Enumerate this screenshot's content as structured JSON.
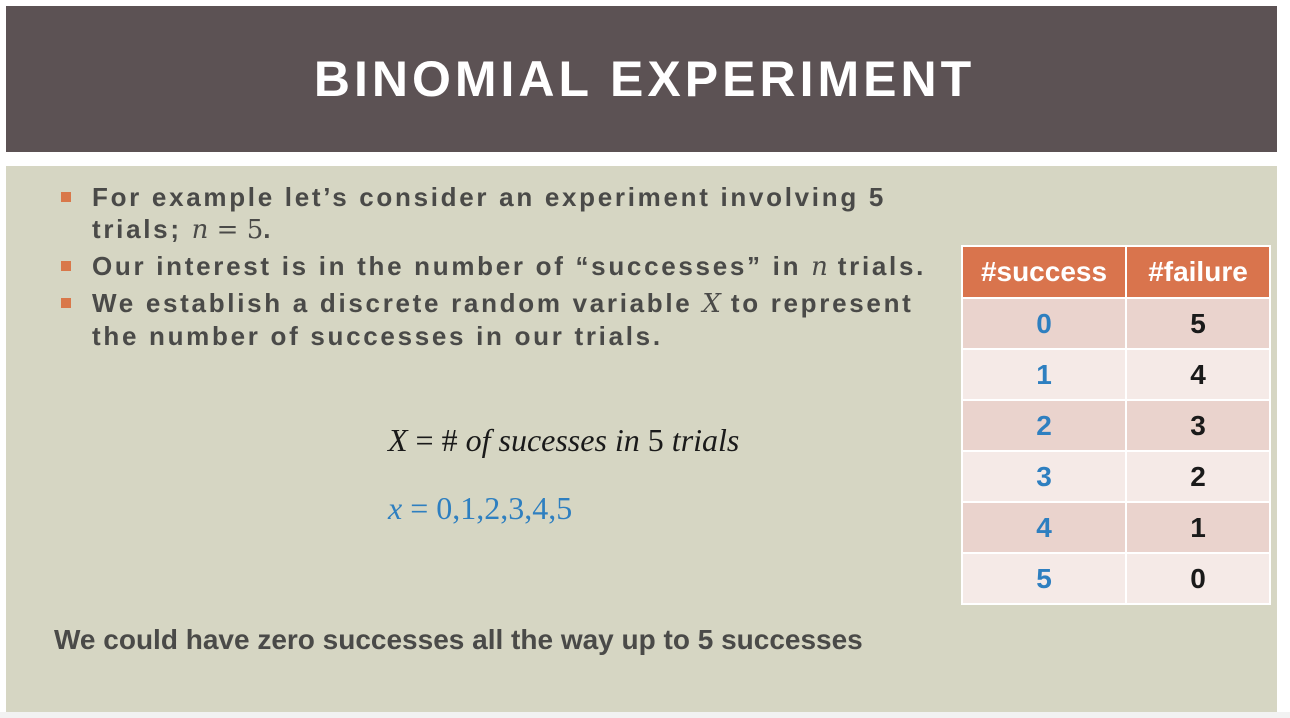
{
  "header": {
    "title": "BINOMIAL EXPERIMENT"
  },
  "bullets": [
    {
      "text_before": "For example let’s consider an experiment involving 5 trials; ",
      "math_var": "n",
      "math_rest": " = 5",
      "text_after": "."
    },
    {
      "text_before": "Our interest is in the number of “successes” in ",
      "math_var": "n",
      "text_after": " trials."
    },
    {
      "text_before": "We establish a discrete random variable ",
      "math_var": "X",
      "text_after": " to represent the number of successes in our trials."
    }
  ],
  "equation1": {
    "var": "X",
    "equals": " = # ",
    "of": "of",
    "middle": " sucesses in ",
    "five": "5",
    "trials": " trials"
  },
  "equation2": {
    "var": "x",
    "rest": " = 0,1,2,3,4,5"
  },
  "footer_note": "We could have zero successes all the way up to 5 successes",
  "table": {
    "headers": [
      "#success",
      "#failure"
    ],
    "rows": [
      [
        "0",
        "5"
      ],
      [
        "1",
        "4"
      ],
      [
        "2",
        "3"
      ],
      [
        "3",
        "2"
      ],
      [
        "4",
        "1"
      ],
      [
        "5",
        "0"
      ]
    ]
  },
  "colors": {
    "header_bg": "#5c5254",
    "panel_bg": "#d6d6c3",
    "accent_orange": "#d9744d",
    "blue_text": "#2e7fc0"
  }
}
